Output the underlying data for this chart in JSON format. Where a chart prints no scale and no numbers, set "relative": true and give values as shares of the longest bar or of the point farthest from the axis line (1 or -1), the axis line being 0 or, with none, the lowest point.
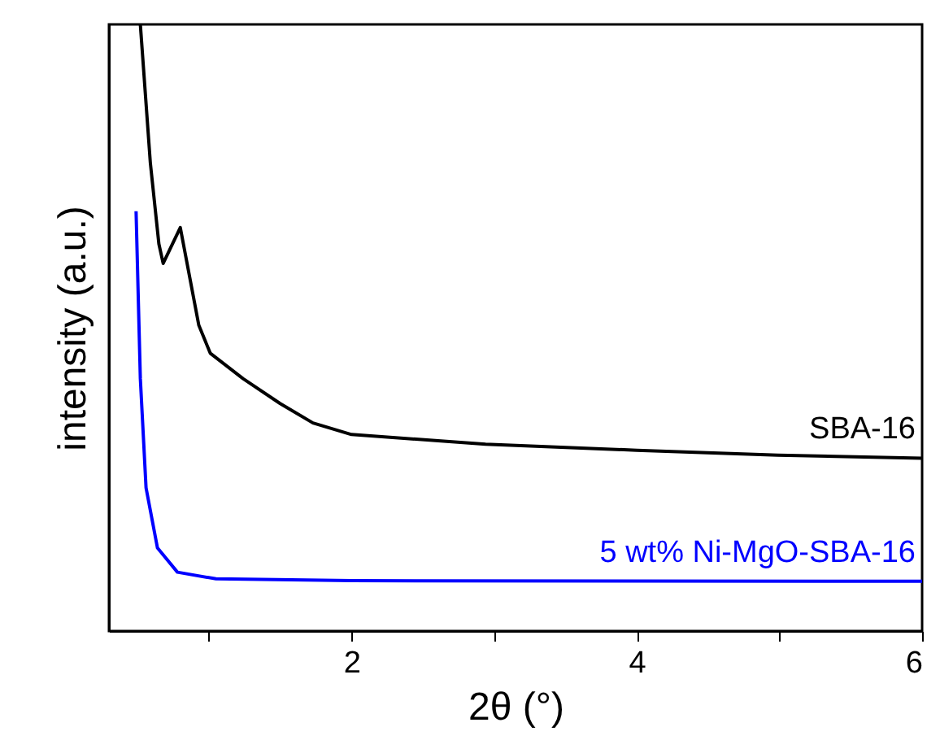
{
  "chart_data": {
    "type": "line",
    "xlabel": "2θ (°)",
    "ylabel": "intensity (a.u.)",
    "relative": true,
    "xlim": [
      0.3,
      6
    ],
    "xticks": [
      {
        "value": 1,
        "label": null
      },
      2,
      {
        "value": 3,
        "label": null
      },
      4,
      {
        "value": 5,
        "label": null
      },
      6
    ],
    "grid": false,
    "marker": "none",
    "line_style": "solid",
    "series": [
      {
        "name": "SBA-16",
        "color": "#000000",
        "x": [
          0.52,
          0.59,
          0.65,
          0.68,
          0.8,
          0.93,
          1.01,
          1.24,
          1.5,
          1.73,
          2.0,
          2.94,
          4.0,
          4.99,
          6.0
        ],
        "values": [
          1.0,
          0.772,
          0.638,
          0.606,
          0.665,
          0.504,
          0.458,
          0.416,
          0.375,
          0.343,
          0.324,
          0.308,
          0.298,
          0.29,
          0.285
        ]
      },
      {
        "name": "5 wt% Ni-MgO-SBA-16",
        "color": "#0000ff",
        "x": [
          0.49,
          0.52,
          0.56,
          0.64,
          0.78,
          1.05,
          2.0,
          6.0
        ],
        "values": [
          0.692,
          0.416,
          0.236,
          0.137,
          0.097,
          0.086,
          0.083,
          0.082
        ]
      }
    ]
  }
}
